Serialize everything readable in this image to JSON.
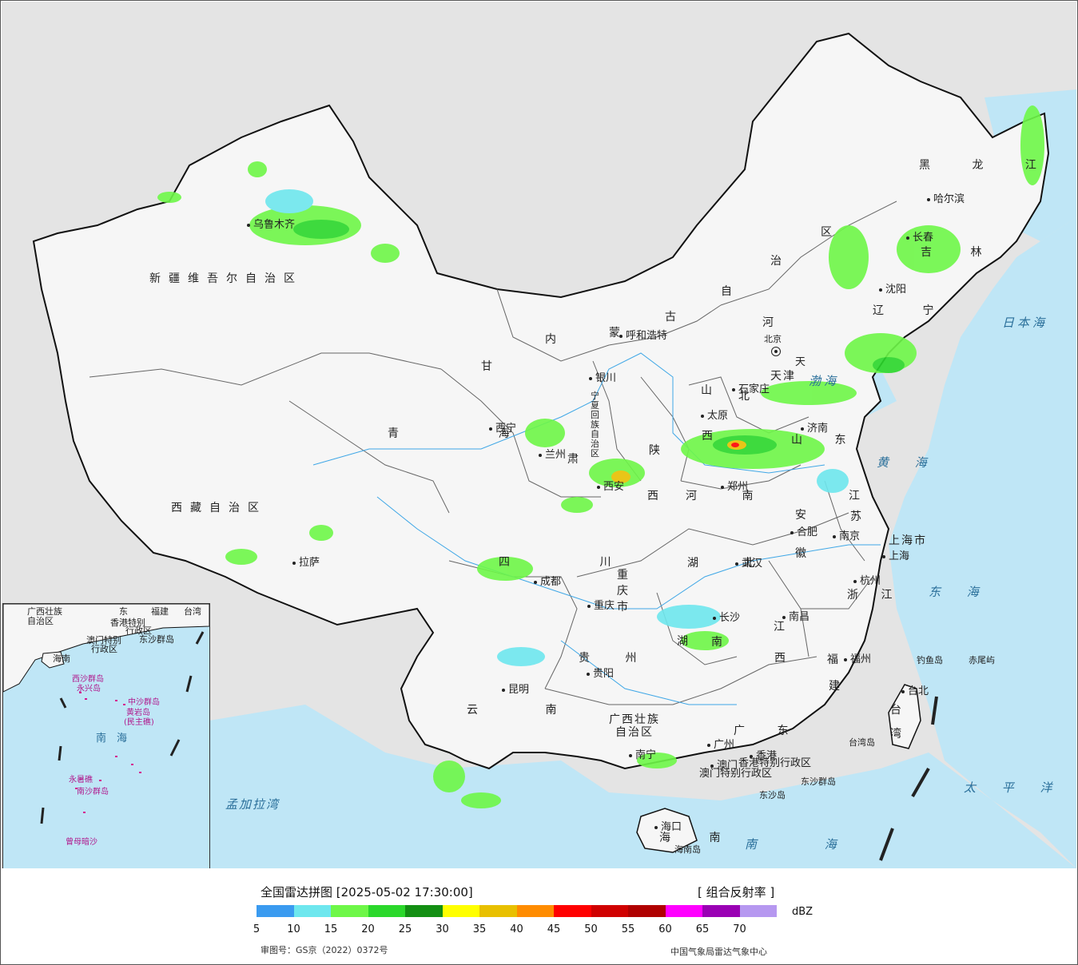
{
  "map": {
    "provinces": [
      {
        "id": "xinjiang",
        "text": "新疆维吾尔自治区"
      },
      {
        "id": "xizang",
        "text": "西藏自治区"
      },
      {
        "id": "qinghai",
        "text": "青 海"
      },
      {
        "id": "gansu",
        "text": "甘"
      },
      {
        "id": "gansu2",
        "text": "肃"
      },
      {
        "id": "neimenggu1",
        "text": "内"
      },
      {
        "id": "neimenggu2",
        "text": "蒙"
      },
      {
        "id": "neimenggu3",
        "text": "古"
      },
      {
        "id": "neimenggu4",
        "text": "自"
      },
      {
        "id": "neimenggu5",
        "text": "治"
      },
      {
        "id": "neimenggu6",
        "text": "区"
      },
      {
        "id": "heilongjiang",
        "text": "黑 龙 江"
      },
      {
        "id": "jilin",
        "text": "吉 林"
      },
      {
        "id": "liaoning",
        "text": "辽 宁"
      },
      {
        "id": "hebei1",
        "text": "河"
      },
      {
        "id": "hebei2",
        "text": "北"
      },
      {
        "id": "shanxi1",
        "text": "山"
      },
      {
        "id": "shanxi2",
        "text": "西"
      },
      {
        "id": "shandong",
        "text": "山 东"
      },
      {
        "id": "henan",
        "text": "河 南"
      },
      {
        "id": "shaanxi1",
        "text": "陕"
      },
      {
        "id": "shaanxi2",
        "text": "西"
      },
      {
        "id": "ningxia",
        "text": "宁夏回族自治区"
      },
      {
        "id": "sichuan",
        "text": "四 川"
      },
      {
        "id": "chongqing",
        "text": "重庆市"
      },
      {
        "id": "hubei",
        "text": "湖 北"
      },
      {
        "id": "anhui1",
        "text": "安"
      },
      {
        "id": "anhui2",
        "text": "徽"
      },
      {
        "id": "jiangsu1",
        "text": "江"
      },
      {
        "id": "jiangsu2",
        "text": "苏"
      },
      {
        "id": "zhejiang",
        "text": "浙 江"
      },
      {
        "id": "jiangxi1",
        "text": "江"
      },
      {
        "id": "jiangxi2",
        "text": "西"
      },
      {
        "id": "hunan1",
        "text": "湖"
      },
      {
        "id": "hunan2",
        "text": "南"
      },
      {
        "id": "guizhou",
        "text": "贵 州"
      },
      {
        "id": "yunnan",
        "text": "云 南"
      },
      {
        "id": "guangxi1",
        "text": "广西壮族"
      },
      {
        "id": "guangxi2",
        "text": "自治区"
      },
      {
        "id": "guangdong",
        "text": "广 东"
      },
      {
        "id": "fujian1",
        "text": "福"
      },
      {
        "id": "fujian2",
        "text": "建"
      },
      {
        "id": "taiwan",
        "text": "台湾"
      },
      {
        "id": "hainan",
        "text": "海 南"
      },
      {
        "id": "shanghai",
        "text": "上海市"
      },
      {
        "id": "beijing",
        "text": "北京"
      },
      {
        "id": "tianjin",
        "text": "天津"
      },
      {
        "id": "xianggang",
        "text": "香港特别行政区"
      },
      {
        "id": "aomen",
        "text": "澳门特别行政区"
      },
      {
        "id": "tianjin_abbr",
        "text": "天"
      }
    ],
    "cities": [
      {
        "id": "wulumuqi",
        "text": "乌鲁木齐"
      },
      {
        "id": "lasa",
        "text": "拉萨"
      },
      {
        "id": "xining",
        "text": "西宁"
      },
      {
        "id": "lanzhou",
        "text": "兰州"
      },
      {
        "id": "yinchuan",
        "text": "银川"
      },
      {
        "id": "huhehaote",
        "text": "呼和浩特"
      },
      {
        "id": "haerbin",
        "text": "哈尔滨"
      },
      {
        "id": "changchun",
        "text": "长春"
      },
      {
        "id": "shenyang",
        "text": "沈阳"
      },
      {
        "id": "shijiazhuang",
        "text": "石家庄"
      },
      {
        "id": "taiyuan",
        "text": "太原"
      },
      {
        "id": "jinan",
        "text": "济南"
      },
      {
        "id": "zhengzhou",
        "text": "郑州"
      },
      {
        "id": "xian",
        "text": "西安"
      },
      {
        "id": "chengdu",
        "text": "成都"
      },
      {
        "id": "chongqing_c",
        "text": "重庆"
      },
      {
        "id": "wuhan",
        "text": "武汉"
      },
      {
        "id": "hefei",
        "text": "合肥"
      },
      {
        "id": "nanjing",
        "text": "南京"
      },
      {
        "id": "shanghai_c",
        "text": "上海"
      },
      {
        "id": "hangzhou",
        "text": "杭州"
      },
      {
        "id": "nanchang",
        "text": "南昌"
      },
      {
        "id": "changsha",
        "text": "长沙"
      },
      {
        "id": "guiyang",
        "text": "贵阳"
      },
      {
        "id": "kunming",
        "text": "昆明"
      },
      {
        "id": "nanning",
        "text": "南宁"
      },
      {
        "id": "guangzhou",
        "text": "广州"
      },
      {
        "id": "fuzhou",
        "text": "福州"
      },
      {
        "id": "taibei",
        "text": "台北"
      },
      {
        "id": "haikou",
        "text": "海口"
      },
      {
        "id": "xianggang_c",
        "text": "香港"
      },
      {
        "id": "aomen_c",
        "text": "澳门"
      }
    ],
    "seas": [
      {
        "id": "bohai",
        "text": "渤海"
      },
      {
        "id": "huanghai",
        "text": "黄 海"
      },
      {
        "id": "donghai",
        "text": "东 海"
      },
      {
        "id": "nanhai",
        "text": "南 海"
      },
      {
        "id": "riben",
        "text": "日本海"
      },
      {
        "id": "taipingyang",
        "text": "太 平 洋"
      },
      {
        "id": "mengjiala",
        "text": "孟加拉湾"
      }
    ],
    "islands": [
      {
        "id": "diaoyu",
        "text": "钓鱼岛"
      },
      {
        "id": "chiwei",
        "text": "赤尾屿"
      },
      {
        "id": "taiwandao",
        "text": "台湾岛"
      },
      {
        "id": "dongsha",
        "text": "东沙群岛"
      },
      {
        "id": "dongshadao",
        "text": "东沙岛"
      },
      {
        "id": "hainandao",
        "text": "海南岛"
      }
    ],
    "inset": {
      "labels": [
        {
          "id": "i_guangxi",
          "text": "广西壮族"
        },
        {
          "id": "i_guangxi2",
          "text": "自治区"
        },
        {
          "id": "i_guangdong",
          "text": "东"
        },
        {
          "id": "i_fujian",
          "text": "福建"
        },
        {
          "id": "i_taiwan",
          "text": "台湾"
        },
        {
          "id": "i_xg",
          "text": "香港特别"
        },
        {
          "id": "i_xg2",
          "text": "行政区"
        },
        {
          "id": "i_am",
          "text": "澳门特别"
        },
        {
          "id": "i_am2",
          "text": "行政区"
        },
        {
          "id": "i_dongsha",
          "text": "东沙群岛"
        },
        {
          "id": "i_hainan",
          "text": "海南"
        },
        {
          "id": "i_xisha",
          "text": "西沙群岛"
        },
        {
          "id": "i_yongxing",
          "text": "永兴岛"
        },
        {
          "id": "i_zhongsha",
          "text": "中沙群岛"
        },
        {
          "id": "i_huangyan",
          "text": "黄岩岛"
        },
        {
          "id": "i_minzhu",
          "text": "(民主礁)"
        },
        {
          "id": "i_nanhai",
          "text": "南　海"
        },
        {
          "id": "i_yongshu",
          "text": "永暑礁"
        },
        {
          "id": "i_nansha",
          "text": "南沙群岛"
        },
        {
          "id": "i_zengmu",
          "text": "曾母暗沙"
        }
      ]
    }
  },
  "legend": {
    "title": "全国雷达拼图 [2025-05-02 17:30:00]",
    "product": "[ 组合反射率 ]",
    "unit": "dBZ",
    "colors": [
      "#3a9bf0",
      "#6ee7ee",
      "#6ef748",
      "#2bd82b",
      "#138f13",
      "#ffff00",
      "#e8c000",
      "#ff8c00",
      "#ff0000",
      "#d00000",
      "#b00000",
      "#ff00ff",
      "#9a00b4",
      "#b698f0"
    ],
    "ticks": [
      "5",
      "10",
      "15",
      "20",
      "25",
      "30",
      "35",
      "40",
      "45",
      "50",
      "55",
      "60",
      "65",
      "70"
    ],
    "approval": "审图号：GS京（2022）0372号",
    "org": "中国气象局雷达气象中心"
  }
}
